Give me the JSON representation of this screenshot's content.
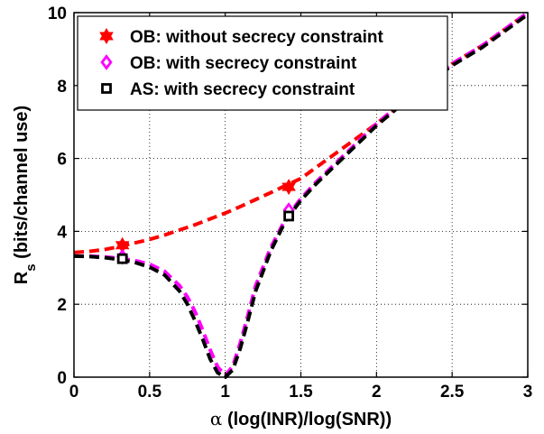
{
  "chart_data": {
    "type": "line",
    "xlabel_prefix": "α",
    "xlabel_text": " (log(INR)/log(SNR))",
    "ylabel_main": "R",
    "ylabel_sub": "s",
    "ylabel_rest": " (bits/channel use)",
    "xlim": [
      0,
      3
    ],
    "ylim": [
      0,
      10
    ],
    "xticks": [
      "0",
      "0.5",
      "1",
      "1.5",
      "2",
      "2.5",
      "3"
    ],
    "yticks": [
      "0",
      "2",
      "4",
      "6",
      "8",
      "10"
    ],
    "grid": true,
    "legend_position": "top-left",
    "series": [
      {
        "name": "OB: without secrecy constraint",
        "color": "#ff0000",
        "marker": "hexagram",
        "x": [
          0,
          0.1,
          0.2,
          0.3,
          0.4,
          0.5,
          0.6,
          0.7,
          0.8,
          0.9,
          1.0,
          1.1,
          1.2,
          1.3,
          1.4,
          1.5,
          1.6,
          1.7,
          1.8,
          1.9,
          2.0,
          2.1,
          2.2,
          2.3,
          2.4,
          2.5,
          2.6,
          2.7,
          2.8,
          2.9,
          3.0
        ],
        "y": [
          3.42,
          3.45,
          3.5,
          3.58,
          3.68,
          3.78,
          3.9,
          4.04,
          4.18,
          4.34,
          4.5,
          4.68,
          4.87,
          5.06,
          5.26,
          5.45,
          5.75,
          6.05,
          6.35,
          6.65,
          6.95,
          7.3,
          7.65,
          8.0,
          8.3,
          8.6,
          8.85,
          9.1,
          9.4,
          9.7,
          10.0
        ],
        "marker_x": [
          0.32,
          1.42
        ],
        "marker_y": [
          3.62,
          5.22
        ]
      },
      {
        "name": "OB: with secrecy constraint",
        "color": "#ff00ff",
        "marker": "diamond",
        "x": [
          0,
          0.1,
          0.2,
          0.3,
          0.4,
          0.5,
          0.6,
          0.7,
          0.75,
          0.8,
          0.85,
          0.9,
          0.95,
          1.0,
          1.05,
          1.1,
          1.15,
          1.2,
          1.3,
          1.4,
          1.5,
          1.6,
          1.7,
          1.8,
          1.9,
          2.0,
          2.1,
          2.2,
          2.3,
          2.4,
          2.5,
          2.6,
          2.7,
          2.8,
          2.9,
          3.0
        ],
        "y": [
          3.32,
          3.32,
          3.3,
          3.26,
          3.2,
          3.1,
          2.9,
          2.5,
          2.2,
          1.8,
          1.3,
          0.75,
          0.28,
          0.05,
          0.3,
          0.95,
          1.7,
          2.5,
          3.55,
          4.35,
          4.9,
          5.35,
          5.75,
          6.15,
          6.55,
          6.95,
          7.3,
          7.65,
          8.0,
          8.3,
          8.6,
          8.85,
          9.1,
          9.4,
          9.7,
          10.0
        ],
        "marker_x": [
          0.32,
          1.42
        ],
        "marker_y": [
          3.3,
          4.58
        ]
      },
      {
        "name": "AS: with secrecy constraint",
        "color": "#000000",
        "marker": "square",
        "x": [
          0,
          0.1,
          0.2,
          0.3,
          0.4,
          0.5,
          0.6,
          0.7,
          0.75,
          0.8,
          0.85,
          0.9,
          0.95,
          1.0,
          1.05,
          1.1,
          1.15,
          1.2,
          1.3,
          1.4,
          1.5,
          1.6,
          1.7,
          1.8,
          1.9,
          2.0,
          2.1,
          2.2,
          2.3,
          2.4,
          2.5,
          2.6,
          2.7,
          2.8,
          2.9,
          3.0
        ],
        "y": [
          3.32,
          3.31,
          3.28,
          3.23,
          3.15,
          3.02,
          2.8,
          2.35,
          2.0,
          1.55,
          1.05,
          0.5,
          0.12,
          0.0,
          0.2,
          0.8,
          1.55,
          2.35,
          3.45,
          4.3,
          4.85,
          5.3,
          5.7,
          6.1,
          6.5,
          6.9,
          7.25,
          7.6,
          7.95,
          8.25,
          8.55,
          8.8,
          9.05,
          9.35,
          9.65,
          9.95
        ],
        "marker_x": [
          0.32,
          1.42
        ],
        "marker_y": [
          3.25,
          4.42
        ]
      }
    ]
  }
}
